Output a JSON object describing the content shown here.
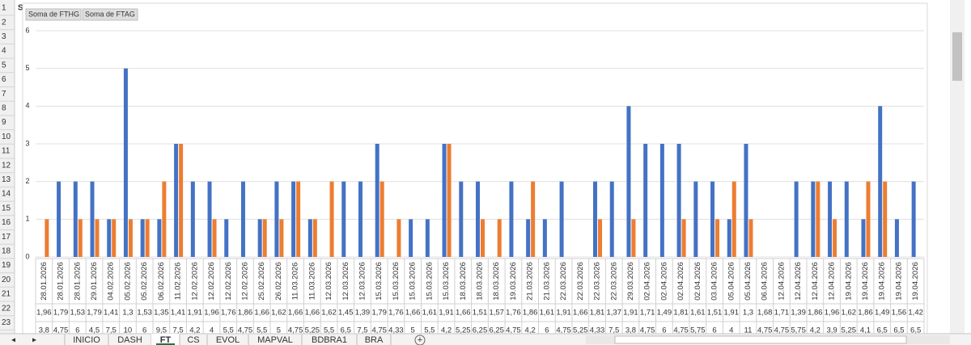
{
  "sheet": {
    "cell_a1": "S",
    "row_numbers": [
      1,
      2,
      3,
      4,
      5,
      6,
      7,
      8,
      9,
      10,
      11,
      12,
      13,
      14,
      15,
      16,
      17,
      18,
      19,
      20,
      21,
      22,
      23
    ],
    "tabs": [
      "INICIO",
      "DASH",
      "FT",
      "CS",
      "EVOL",
      "MAPVAL",
      "BDBRA1",
      "BRA"
    ],
    "active_tab": "FT"
  },
  "chart_data": {
    "type": "bar",
    "ylim": [
      0,
      6
    ],
    "yticks": [
      0,
      1,
      2,
      3,
      4,
      5,
      6
    ],
    "grid": true,
    "categories": [
      "28.01.2026",
      "28.01.2026",
      "28.01.2026",
      "29.01.2026",
      "04.02.2026",
      "05.02.2026",
      "05.02.2026",
      "06.02.2026",
      "11.02.2026",
      "12.02.2026",
      "12.02.2026",
      "12.02.2026",
      "12.02.2026",
      "25.02.2026",
      "26.02.2026",
      "11.03.2026",
      "11.03.2026",
      "12.03.2026",
      "12.03.2026",
      "12.03.2026",
      "15.03.2026",
      "15.03.2026",
      "15.03.2026",
      "15.03.2026",
      "15.03.2026",
      "18.03.2026",
      "18.03.2026",
      "18.03.2026",
      "19.03.2026",
      "21.03.2026",
      "21.03.2026",
      "22.03.2026",
      "22.03.2026",
      "22.03.2026",
      "22.03.2026",
      "29.03.2026",
      "02.04.2026",
      "02.04.2026",
      "02.04.2026",
      "02.04.2026",
      "03.04.2026",
      "05.04.2026",
      "05.04.2026",
      "06.04.2026",
      "12.04.2026",
      "12.04.2026",
      "12.04.2026",
      "12.04.2026",
      "19.04.2026",
      "19.04.2026",
      "19.04.2026",
      "19.04.2026",
      "19.04.2026"
    ],
    "categories_level2": [
      "1,96",
      "1,79",
      "1,53",
      "1,79",
      "1,41",
      "1,3",
      "1,53",
      "1,35",
      "1,41",
      "1,91",
      "1,96",
      "1,76",
      "1,86",
      "1,66",
      "1,62",
      "1,66",
      "1,66",
      "1,62",
      "1,45",
      "1,39",
      "1,79",
      "1,76",
      "1,66",
      "1,61",
      "1,91",
      "1,66",
      "1,51",
      "1,57",
      "1,76",
      "1,86",
      "1,61",
      "1,91",
      "1,66",
      "1,81",
      "1,37",
      "1,91",
      "1,71",
      "1,49",
      "1,81",
      "1,61",
      "1,51",
      "1,91",
      "1,3",
      "1,68",
      "1,71",
      "1,39",
      "1,86",
      "1,96",
      "1,62",
      "1,86",
      "1,49",
      "1,56",
      "1,42"
    ],
    "categories_level3": [
      "3,8",
      "4,75",
      "6",
      "4,5",
      "7,5",
      "10",
      "6",
      "9,5",
      "7,5",
      "4,2",
      "4",
      "5,5",
      "4,75",
      "5,5",
      "5",
      "4,75",
      "5,25",
      "5,5",
      "6,5",
      "7,5",
      "4,75",
      "4,33",
      "5",
      "5,5",
      "4,2",
      "5,25",
      "6,25",
      "6,25",
      "4,75",
      "4,2",
      "6",
      "4,75",
      "5,25",
      "4,33",
      "7,5",
      "3,8",
      "4,75",
      "6",
      "4,75",
      "5,75",
      "6",
      "4",
      "11",
      "4,75",
      "4,75",
      "5,75",
      "4,2",
      "3,9",
      "5,25",
      "4,1",
      "6,5",
      "6,5",
      "6,5"
    ],
    "series": [
      {
        "name": "Soma de FTHG",
        "color": "#4472c4",
        "values": [
          0,
          2,
          2,
          2,
          1,
          5,
          1,
          1,
          3,
          2,
          2,
          1,
          2,
          1,
          2,
          2,
          1,
          0,
          2,
          2,
          3,
          0,
          1,
          1,
          3,
          2,
          2,
          0,
          2,
          1,
          1,
          2,
          0,
          2,
          2,
          4,
          3,
          3,
          3,
          2,
          2,
          1,
          3,
          0,
          0,
          2,
          2,
          2,
          2,
          1,
          4,
          1,
          2
        ]
      },
      {
        "name": "Soma de FTAG",
        "color": "#ed7d31",
        "values": [
          1,
          0,
          1,
          1,
          1,
          1,
          1,
          2,
          3,
          0,
          1,
          0,
          0,
          1,
          1,
          2,
          1,
          2,
          0,
          0,
          2,
          1,
          0,
          0,
          3,
          0,
          1,
          1,
          0,
          2,
          0,
          0,
          0,
          1,
          0,
          1,
          0,
          0,
          1,
          0,
          1,
          2,
          1,
          0,
          0,
          0,
          2,
          1,
          0,
          2,
          2,
          0,
          0
        ]
      }
    ]
  }
}
